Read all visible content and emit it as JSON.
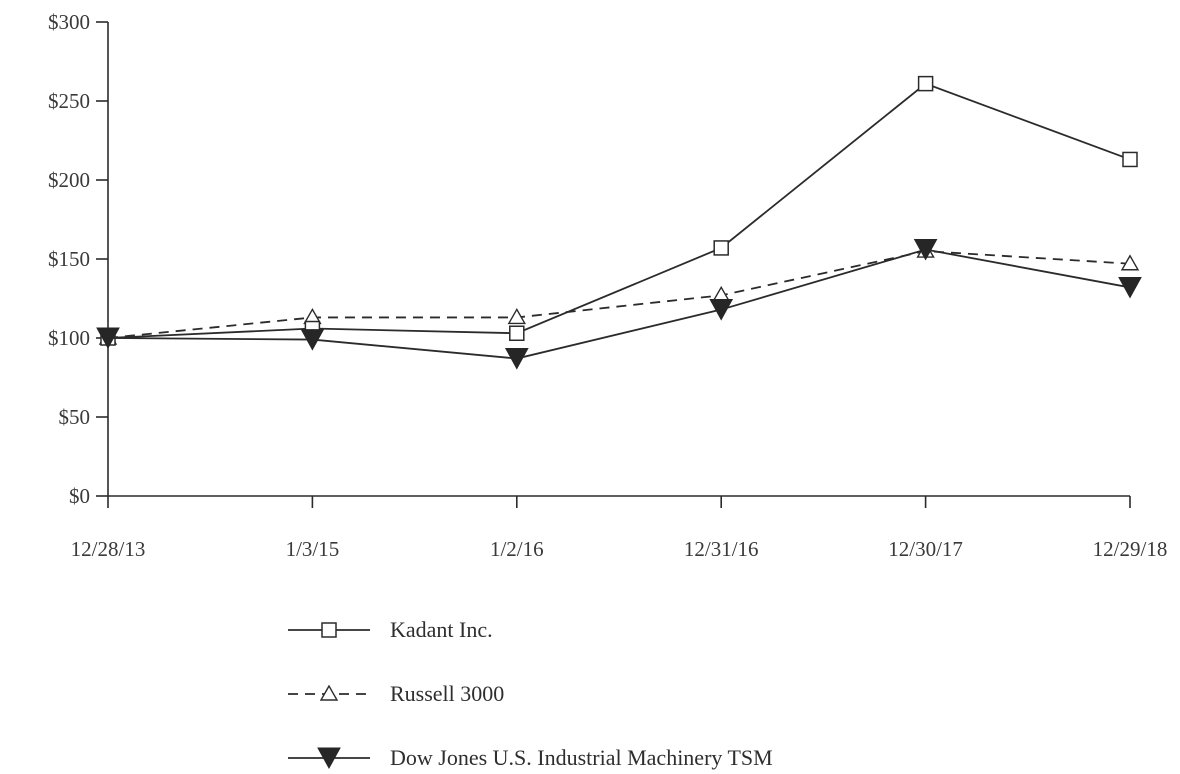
{
  "chart_data": {
    "type": "line",
    "title": "",
    "xlabel": "",
    "ylabel": "",
    "categories": [
      "12/28/13",
      "1/3/15",
      "1/2/16",
      "12/31/16",
      "12/30/17",
      "12/29/18"
    ],
    "ylim": [
      0,
      300
    ],
    "yticks": [
      0,
      50,
      100,
      150,
      200,
      250,
      300
    ],
    "ytick_labels": [
      "$0",
      "$50",
      "$100",
      "$150",
      "$200",
      "$250",
      "$300"
    ],
    "grid": false,
    "legend_position": "bottom",
    "series": [
      {
        "name": "Kadant Inc.",
        "values": [
          100,
          106,
          103,
          157,
          261,
          213
        ],
        "line": "solid",
        "marker": "square-open",
        "color": "#2b2b2b"
      },
      {
        "name": "Russell 3000",
        "values": [
          100,
          113,
          113,
          127,
          155,
          147
        ],
        "line": "dashed",
        "marker": "triangle-open",
        "color": "#2b2b2b"
      },
      {
        "name": "Dow Jones U.S. Industrial Machinery TSM",
        "values": [
          100,
          99,
          87,
          118,
          156,
          132
        ],
        "line": "solid",
        "marker": "triangle-down-filled",
        "color": "#2b2b2b"
      }
    ]
  }
}
